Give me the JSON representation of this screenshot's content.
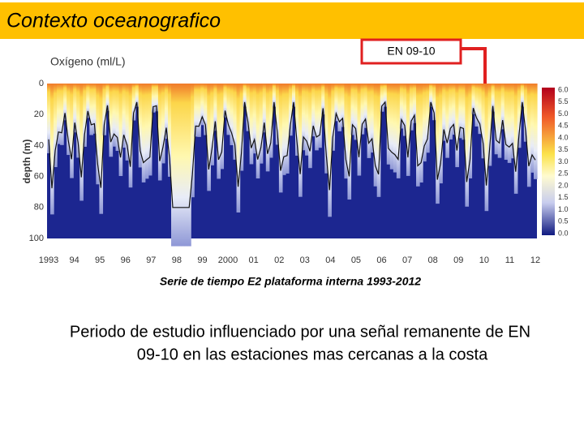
{
  "header": {
    "title": "Contexto oceanografico"
  },
  "callout": {
    "label": "EN 09-10"
  },
  "figure": {
    "title": "Oxígeno (ml/L)",
    "y_label": "depth (m)",
    "y_ticks": [
      "0",
      "20",
      "40",
      "60",
      "80",
      "100"
    ],
    "x_ticks": [
      "1993",
      "94",
      "95",
      "96",
      "97",
      "98",
      "99",
      "2000",
      "01",
      "02",
      "03",
      "04",
      "05",
      "06",
      "07",
      "08",
      "09",
      "10",
      "11",
      "12"
    ],
    "colorbar_ticks": [
      "6.0",
      "5.5",
      "5.0",
      "4.5",
      "4.0",
      "3.5",
      "3.0",
      "2.5",
      "2.0",
      "1.5",
      "1.0",
      "0.5",
      "0.0"
    ],
    "caption": "Serie de tiempo E2 plataforma interna 1993-2012"
  },
  "body": {
    "lines": [
      "Periodo de estudio influenciado por una señal remanente de EN",
      "09-10 en las estaciones mas cercanas a la costa"
    ]
  }
}
